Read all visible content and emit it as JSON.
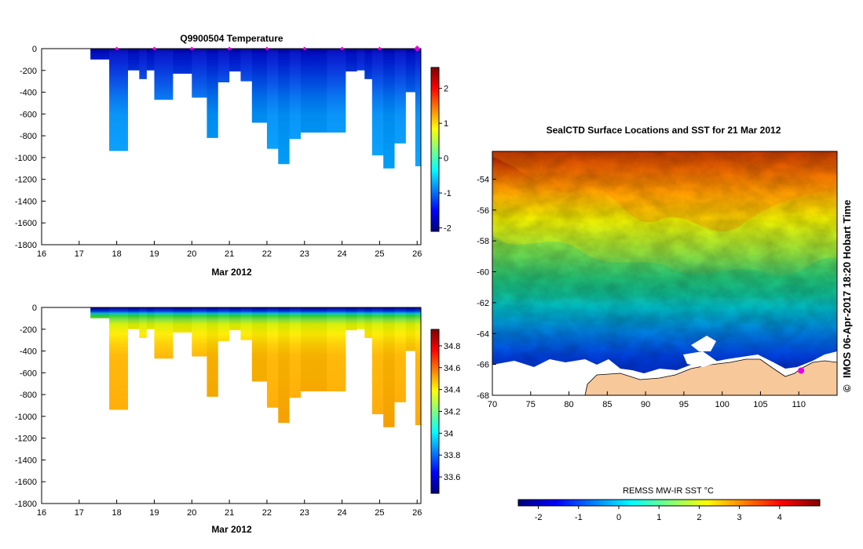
{
  "colors": {
    "land": "#f7c89a",
    "ice": "#ffffff",
    "axis": "#000000",
    "marker": "#e000e0",
    "jet": [
      "#00007f",
      "#0000ff",
      "#007fff",
      "#00ffff",
      "#7fff7f",
      "#ffff00",
      "#ff7f00",
      "#ff0000",
      "#7f0000"
    ]
  },
  "icons": {
    "copyright": "copyright-icon",
    "station_marker": "diamond-marker-icon"
  },
  "chart_data": [
    {
      "type": "heatmap",
      "title": "Q9900504  Temperature",
      "xlabel": "Mar 2012",
      "ylabel": "",
      "xlim": [
        16,
        26.1
      ],
      "ylim": [
        -1800,
        0
      ],
      "x_ticks": [
        "16",
        "17",
        "18",
        "19",
        "20",
        "21",
        "22",
        "23",
        "24",
        "25",
        "26"
      ],
      "y_ticks": [
        "0",
        "-200",
        "-400",
        "-600",
        "-800",
        "-1000",
        "-1200",
        "-1400",
        "-1600",
        "-1800"
      ],
      "colorbar": {
        "range": [
          -2.1,
          2.6
        ],
        "ticks": [
          "2",
          "1",
          "0",
          "-1",
          "-2"
        ],
        "tick_values": [
          2,
          1,
          0,
          -1,
          -2
        ]
      },
      "station_markers_x": [
        18,
        19,
        20,
        21,
        22,
        23,
        24,
        25,
        26
      ],
      "profile_start_x": 17.3,
      "profile_end_x": 26.1,
      "max_depth_profile": [
        {
          "x": 17.3,
          "depth": -100
        },
        {
          "x": 17.8,
          "depth": -940
        },
        {
          "x": 18.3,
          "depth": -200
        },
        {
          "x": 18.6,
          "depth": -280
        },
        {
          "x": 18.8,
          "depth": -200
        },
        {
          "x": 19.0,
          "depth": -470
        },
        {
          "x": 19.5,
          "depth": -230
        },
        {
          "x": 20.0,
          "depth": -450
        },
        {
          "x": 20.4,
          "depth": -820
        },
        {
          "x": 20.7,
          "depth": -310
        },
        {
          "x": 21.0,
          "depth": -210
        },
        {
          "x": 21.3,
          "depth": -300
        },
        {
          "x": 21.6,
          "depth": -680
        },
        {
          "x": 22.0,
          "depth": -920
        },
        {
          "x": 22.3,
          "depth": -1060
        },
        {
          "x": 22.6,
          "depth": -830
        },
        {
          "x": 22.9,
          "depth": -770
        },
        {
          "x": 23.6,
          "depth": -770
        },
        {
          "x": 24.1,
          "depth": -210
        },
        {
          "x": 24.4,
          "depth": -200
        },
        {
          "x": 24.6,
          "depth": -280
        },
        {
          "x": 24.8,
          "depth": -980
        },
        {
          "x": 25.1,
          "depth": -1100
        },
        {
          "x": 25.4,
          "depth": -870
        },
        {
          "x": 25.7,
          "depth": -400
        },
        {
          "x": 25.95,
          "depth": -1080
        }
      ],
      "surface_value": -1.8,
      "deep_value": -0.7
    },
    {
      "type": "heatmap",
      "title": "",
      "xlabel": "Mar 2012",
      "ylabel": "",
      "xlim": [
        16,
        26.1
      ],
      "ylim": [
        -1800,
        0
      ],
      "x_ticks": [
        "16",
        "17",
        "18",
        "19",
        "20",
        "21",
        "22",
        "23",
        "24",
        "25",
        "26"
      ],
      "y_ticks": [
        "0",
        "-200",
        "-400",
        "-600",
        "-800",
        "-1000",
        "-1200",
        "-1400",
        "-1600",
        "-1800"
      ],
      "colorbar": {
        "range": [
          33.45,
          34.95
        ],
        "ticks": [
          "34.8",
          "34.6",
          "34.4",
          "34.2",
          "34",
          "33.8",
          "33.6"
        ],
        "tick_values": [
          34.8,
          34.6,
          34.4,
          34.2,
          34.0,
          33.8,
          33.6
        ]
      },
      "surface_value": 33.6,
      "deep_value": 34.6
    },
    {
      "type": "heatmap",
      "title": "SealCTD Surface Locations and SST for 21 Mar 2012",
      "xlabel": "",
      "ylabel": "",
      "xlim": [
        70,
        115
      ],
      "ylim": [
        -68,
        -52.2
      ],
      "x_ticks": [
        "70",
        "75",
        "80",
        "85",
        "90",
        "95",
        "100",
        "105",
        "110"
      ],
      "y_ticks": [
        "-54",
        "-56",
        "-58",
        "-60",
        "-62",
        "-64",
        "-66",
        "-68"
      ],
      "sst_range": [
        -2.5,
        5.0
      ],
      "ship_position": {
        "lon": 110.3,
        "lat": -66.4
      },
      "colorbar": {
        "title": "REMSS MW-IR SST °C",
        "range": [
          -2.5,
          5.0
        ],
        "ticks": [
          "-2",
          "-1",
          "0",
          "1",
          "2",
          "3",
          "4"
        ],
        "tick_values": [
          -2,
          -1,
          0,
          1,
          2,
          3,
          4
        ]
      }
    }
  ],
  "footer": {
    "credit": "IMOS 06-Apr-2017 18:20 Hobart Time",
    "copyright_symbol": "©"
  }
}
